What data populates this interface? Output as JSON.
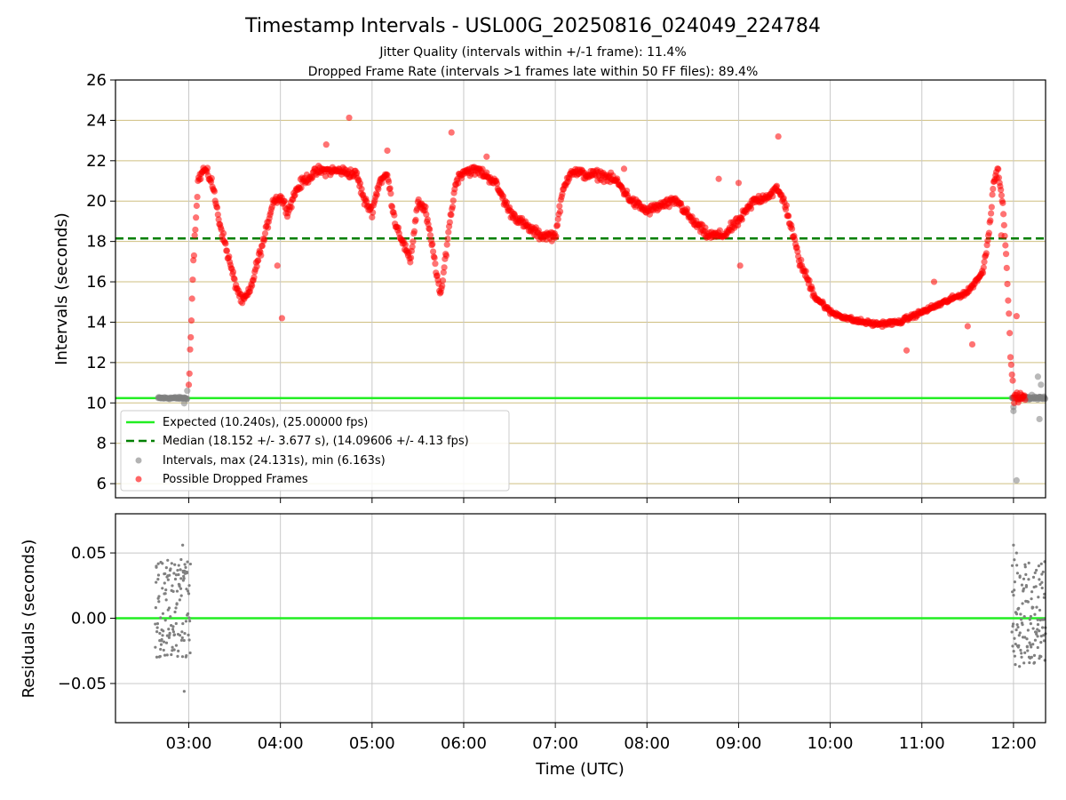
{
  "chart_data": [
    {
      "type": "scatter",
      "title": "Timestamp Intervals - USL00G_20250816_024049_224784",
      "subtitle_1": "Jitter Quality (intervals within +/-1 frame): 11.4%",
      "subtitle_2": "Dropped Frame Rate (intervals >1 frames late within 50 FF files): 89.4%",
      "ylabel": "Intervals (seconds)",
      "xlim": [
        "02:12",
        "12:21"
      ],
      "ylim": [
        5.3,
        26
      ],
      "y_ticks": [
        "6",
        "8",
        "10",
        "12",
        "14",
        "16",
        "18",
        "20",
        "22",
        "24",
        "26"
      ],
      "x_tick_values": [
        "03:00",
        "04:00",
        "05:00",
        "06:00",
        "07:00",
        "08:00",
        "09:00",
        "10:00",
        "11:00",
        "12:00"
      ],
      "grid": "x and y",
      "reference_lines": [
        {
          "name": "Expected (10.240s), (25.00000 fps)",
          "y": 10.24,
          "color": "#22ee22",
          "style": "solid"
        },
        {
          "name": "Median (18.152 +/- 3.677 s), (14.09606 +/- 4.13 fps)",
          "y": 18.152,
          "color": "#007f00",
          "style": "dashed"
        }
      ],
      "series": [
        {
          "name": "Intervals, max (24.131s), min (6.163s)",
          "color": "#808080",
          "segments": [
            {
              "from": "02:40",
              "to": "02:59",
              "y": 10.24,
              "spread": 0.08
            },
            {
              "from": "11:59",
              "to": "12:21",
              "y": 10.24,
              "spread": 0.1
            }
          ],
          "extra_points": [
            {
              "x": "02:59",
              "y": 10.6
            },
            {
              "x": "02:57",
              "y": 9.98
            },
            {
              "x": "12:00",
              "y": 9.6
            },
            {
              "x": "12:00",
              "y": 9.8
            },
            {
              "x": "12:02",
              "y": 6.163
            },
            {
              "x": "12:16",
              "y": 11.3
            },
            {
              "x": "12:18",
              "y": 10.9
            },
            {
              "x": "12:17",
              "y": 9.2
            },
            {
              "x": "12:12",
              "y": 10.4
            }
          ]
        },
        {
          "name": "Possible Dropped Frames",
          "color": "#ff0000",
          "trend": [
            {
              "x": "03:00",
              "y": 10.8
            },
            {
              "x": "03:03",
              "y": 17.0
            },
            {
              "x": "03:06",
              "y": 21.0
            },
            {
              "x": "03:10",
              "y": 21.6
            },
            {
              "x": "03:15",
              "y": 21.0
            },
            {
              "x": "03:20",
              "y": 19.0
            },
            {
              "x": "03:25",
              "y": 17.5
            },
            {
              "x": "03:30",
              "y": 16.0
            },
            {
              "x": "03:35",
              "y": 15.0
            },
            {
              "x": "03:40",
              "y": 15.5
            },
            {
              "x": "03:45",
              "y": 17.0
            },
            {
              "x": "03:50",
              "y": 18.3
            },
            {
              "x": "03:55",
              "y": 20.0
            },
            {
              "x": "04:00",
              "y": 20.2
            },
            {
              "x": "04:05",
              "y": 19.5
            },
            {
              "x": "04:10",
              "y": 20.5
            },
            {
              "x": "04:15",
              "y": 21.0
            },
            {
              "x": "04:25",
              "y": 21.5
            },
            {
              "x": "04:40",
              "y": 21.5
            },
            {
              "x": "04:50",
              "y": 21.3
            },
            {
              "x": "04:55",
              "y": 20.0
            },
            {
              "x": "05:00",
              "y": 19.5
            },
            {
              "x": "05:05",
              "y": 21.0
            },
            {
              "x": "05:10",
              "y": 21.3
            },
            {
              "x": "05:15",
              "y": 19.0
            },
            {
              "x": "05:20",
              "y": 18.0
            },
            {
              "x": "05:25",
              "y": 17.0
            },
            {
              "x": "05:30",
              "y": 20.0
            },
            {
              "x": "05:35",
              "y": 19.5
            },
            {
              "x": "05:40",
              "y": 17.5
            },
            {
              "x": "05:45",
              "y": 15.2
            },
            {
              "x": "05:50",
              "y": 18.5
            },
            {
              "x": "05:55",
              "y": 21.0
            },
            {
              "x": "06:00",
              "y": 21.5
            },
            {
              "x": "06:10",
              "y": 21.5
            },
            {
              "x": "06:20",
              "y": 21.0
            },
            {
              "x": "06:30",
              "y": 19.5
            },
            {
              "x": "06:40",
              "y": 18.8
            },
            {
              "x": "06:50",
              "y": 18.3
            },
            {
              "x": "07:00",
              "y": 18.3
            },
            {
              "x": "07:05",
              "y": 20.5
            },
            {
              "x": "07:10",
              "y": 21.5
            },
            {
              "x": "07:20",
              "y": 21.3
            },
            {
              "x": "07:30",
              "y": 21.3
            },
            {
              "x": "07:40",
              "y": 21.0
            },
            {
              "x": "07:50",
              "y": 20.0
            },
            {
              "x": "08:00",
              "y": 19.5
            },
            {
              "x": "08:10",
              "y": 19.8
            },
            {
              "x": "08:20",
              "y": 20.0
            },
            {
              "x": "08:30",
              "y": 19.0
            },
            {
              "x": "08:40",
              "y": 18.3
            },
            {
              "x": "08:50",
              "y": 18.3
            },
            {
              "x": "09:00",
              "y": 19.0
            },
            {
              "x": "09:10",
              "y": 20.0
            },
            {
              "x": "09:20",
              "y": 20.3
            },
            {
              "x": "09:25",
              "y": 20.6
            },
            {
              "x": "09:30",
              "y": 20.0
            },
            {
              "x": "09:35",
              "y": 18.5
            },
            {
              "x": "09:40",
              "y": 17.0
            },
            {
              "x": "09:50",
              "y": 15.3
            },
            {
              "x": "10:00",
              "y": 14.5
            },
            {
              "x": "10:15",
              "y": 14.1
            },
            {
              "x": "10:30",
              "y": 13.9
            },
            {
              "x": "10:45",
              "y": 14.0
            },
            {
              "x": "11:00",
              "y": 14.5
            },
            {
              "x": "11:15",
              "y": 15.0
            },
            {
              "x": "11:30",
              "y": 15.5
            },
            {
              "x": "11:40",
              "y": 16.5
            },
            {
              "x": "11:44",
              "y": 18.5
            },
            {
              "x": "11:47",
              "y": 21.0
            },
            {
              "x": "11:50",
              "y": 21.5
            },
            {
              "x": "11:53",
              "y": 20.0
            },
            {
              "x": "11:56",
              "y": 16.0
            },
            {
              "x": "11:58",
              "y": 12.5
            },
            {
              "x": "12:00",
              "y": 10.3
            },
            {
              "x": "12:08",
              "y": 10.24
            }
          ],
          "outliers": [
            {
              "x": "04:45",
              "y": 24.131
            },
            {
              "x": "05:52",
              "y": 23.4
            },
            {
              "x": "09:26",
              "y": 23.2
            },
            {
              "x": "04:01",
              "y": 14.2
            },
            {
              "x": "03:58",
              "y": 16.8
            },
            {
              "x": "08:47",
              "y": 21.1
            },
            {
              "x": "09:00",
              "y": 20.9
            },
            {
              "x": "09:01",
              "y": 16.8
            },
            {
              "x": "11:08",
              "y": 16.0
            },
            {
              "x": "10:50",
              "y": 12.6
            },
            {
              "x": "11:30",
              "y": 13.8
            },
            {
              "x": "11:33",
              "y": 12.9
            },
            {
              "x": "12:02",
              "y": 14.3
            },
            {
              "x": "11:52",
              "y": 18.3
            },
            {
              "x": "04:30",
              "y": 22.8
            },
            {
              "x": "05:10",
              "y": 22.5
            },
            {
              "x": "06:15",
              "y": 22.2
            },
            {
              "x": "07:45",
              "y": 21.6
            }
          ]
        }
      ],
      "legend": {
        "placement": "lower-left",
        "entries": [
          "Expected (10.240s), (25.00000 fps)",
          "Median (18.152 +/- 3.677 s), (14.09606 +/- 4.13 fps)",
          "Intervals, max (24.131s), min (6.163s)",
          "Possible Dropped Frames"
        ]
      }
    },
    {
      "type": "scatter",
      "xlabel": "Time (UTC)",
      "ylabel": "Residuals (seconds)",
      "xlim": [
        "02:12",
        "12:21"
      ],
      "ylim": [
        -0.08,
        0.08
      ],
      "y_ticks": [
        "0.05",
        "0.00",
        "−0.05"
      ],
      "x_ticks": [
        "03:00",
        "04:00",
        "05:00",
        "06:00",
        "07:00",
        "08:00",
        "09:00",
        "10:00",
        "11:00",
        "12:00"
      ],
      "grid": "x and y",
      "zero_line_color": "#22ee22",
      "series": [
        {
          "color": "#808080",
          "clusters": [
            {
              "from": "02:38",
              "to": "03:01",
              "range": [
                -0.03,
                0.045
              ]
            },
            {
              "from": "11:59",
              "to": "12:21",
              "range": [
                -0.037,
                0.045
              ]
            }
          ],
          "extra_points": [
            {
              "x": "02:56",
              "y": 0.056
            },
            {
              "x": "02:57",
              "y": -0.056
            },
            {
              "x": "12:00",
              "y": 0.056
            },
            {
              "x": "12:02",
              "y": 0.05
            }
          ]
        }
      ]
    }
  ]
}
